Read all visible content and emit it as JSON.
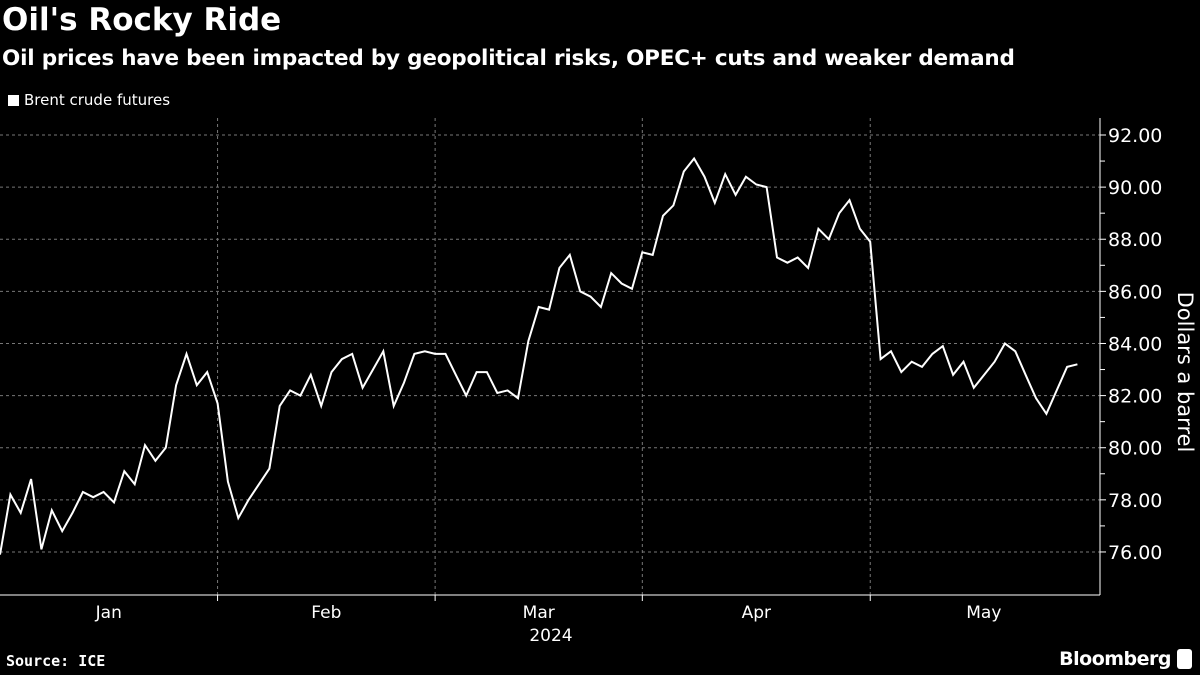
{
  "title": "Oil's Rocky Ride",
  "subtitle": "Oil prices have been impacted by geopolitical risks, OPEC+ cuts and weaker demand",
  "source": "Source: ICE",
  "brand": "Bloomberg",
  "chart_data": {
    "type": "line",
    "legend_position": "top-left",
    "grid": true,
    "ylabel": "Dollars a barrel",
    "xlabel": "",
    "year_label": "2024",
    "ylim": [
      74.5,
      92.8
    ],
    "y_ticks": [
      "76.00",
      "78.00",
      "80.00",
      "82.00",
      "84.00",
      "86.00",
      "88.00",
      "90.00",
      "92.00"
    ],
    "y_tick_values": [
      76,
      78,
      80,
      82,
      84,
      86,
      88,
      90,
      92
    ],
    "month_ticks": [
      {
        "label": "Jan",
        "start": "2024-01-02"
      },
      {
        "label": "Feb",
        "start": "2024-02-01"
      },
      {
        "label": "Mar",
        "start": "2024-03-01"
      },
      {
        "label": "Apr",
        "start": "2024-04-01"
      },
      {
        "label": "May",
        "start": "2024-05-01"
      }
    ],
    "series": [
      {
        "name": "Brent crude futures",
        "color": "#ffffff",
        "x": [
          "2024-01-02",
          "2024-01-03",
          "2024-01-04",
          "2024-01-05",
          "2024-01-08",
          "2024-01-09",
          "2024-01-10",
          "2024-01-11",
          "2024-01-12",
          "2024-01-16",
          "2024-01-17",
          "2024-01-18",
          "2024-01-19",
          "2024-01-22",
          "2024-01-23",
          "2024-01-24",
          "2024-01-25",
          "2024-01-26",
          "2024-01-29",
          "2024-01-30",
          "2024-01-31",
          "2024-02-01",
          "2024-02-02",
          "2024-02-05",
          "2024-02-06",
          "2024-02-07",
          "2024-02-08",
          "2024-02-09",
          "2024-02-12",
          "2024-02-13",
          "2024-02-14",
          "2024-02-15",
          "2024-02-16",
          "2024-02-19",
          "2024-02-20",
          "2024-02-21",
          "2024-02-22",
          "2024-02-23",
          "2024-02-26",
          "2024-02-27",
          "2024-02-28",
          "2024-02-29",
          "2024-03-01",
          "2024-03-04",
          "2024-03-05",
          "2024-03-06",
          "2024-03-07",
          "2024-03-08",
          "2024-03-11",
          "2024-03-12",
          "2024-03-13",
          "2024-03-14",
          "2024-03-15",
          "2024-03-18",
          "2024-03-19",
          "2024-03-20",
          "2024-03-21",
          "2024-03-22",
          "2024-03-25",
          "2024-03-26",
          "2024-03-27",
          "2024-03-28",
          "2024-04-01",
          "2024-04-02",
          "2024-04-03",
          "2024-04-04",
          "2024-04-05",
          "2024-04-08",
          "2024-04-09",
          "2024-04-10",
          "2024-04-11",
          "2024-04-12",
          "2024-04-15",
          "2024-04-16",
          "2024-04-17",
          "2024-04-18",
          "2024-04-19",
          "2024-04-22",
          "2024-04-23",
          "2024-04-24",
          "2024-04-25",
          "2024-04-26",
          "2024-04-29",
          "2024-04-30",
          "2024-05-01",
          "2024-05-02",
          "2024-05-03",
          "2024-05-06",
          "2024-05-07",
          "2024-05-08",
          "2024-05-09",
          "2024-05-10",
          "2024-05-13",
          "2024-05-14",
          "2024-05-15",
          "2024-05-16",
          "2024-05-17",
          "2024-05-20",
          "2024-05-21",
          "2024-05-22",
          "2024-05-23",
          "2024-05-24",
          "2024-05-27",
          "2024-05-28",
          "2024-05-29"
        ],
        "values": [
          75.9,
          78.2,
          77.5,
          78.8,
          76.1,
          77.6,
          76.8,
          77.5,
          78.3,
          78.1,
          78.3,
          77.9,
          79.1,
          78.6,
          80.1,
          79.5,
          80.0,
          82.4,
          83.6,
          82.4,
          82.9,
          81.7,
          78.7,
          77.3,
          78.0,
          78.6,
          79.2,
          81.6,
          82.2,
          82.0,
          82.8,
          81.6,
          82.9,
          83.4,
          83.6,
          82.3,
          83.0,
          83.7,
          81.6,
          82.5,
          83.6,
          83.7,
          83.6,
          83.6,
          82.8,
          82.0,
          82.9,
          82.9,
          82.1,
          82.2,
          81.9,
          84.1,
          85.4,
          85.3,
          86.9,
          87.4,
          86.0,
          85.8,
          85.4,
          86.7,
          86.3,
          86.1,
          87.5,
          87.4,
          88.9,
          89.3,
          90.6,
          91.1,
          90.4,
          89.4,
          90.5,
          89.7,
          90.4,
          90.1,
          90.0,
          87.3,
          87.1,
          87.3,
          86.9,
          88.4,
          88.0,
          89.0,
          89.5,
          88.4,
          87.9,
          83.4,
          83.7,
          82.9,
          83.3,
          83.1,
          83.6,
          83.9,
          82.8,
          83.3,
          82.3,
          82.8,
          83.3,
          84.0,
          83.7,
          82.8,
          81.9,
          81.3,
          82.2,
          83.1,
          83.2
        ]
      }
    ]
  }
}
